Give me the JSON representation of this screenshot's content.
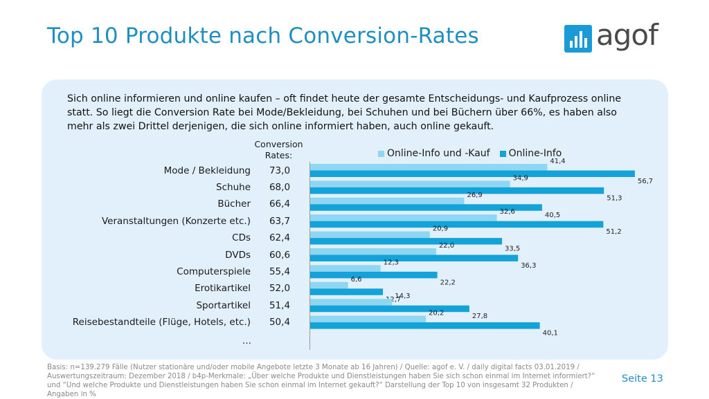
{
  "title": "Top 10 Produkte nach Conversion-Rates",
  "logo": {
    "text": "agof"
  },
  "intro": "Sich online informieren und online kaufen – oft findet heute der gesamte Entscheidungs- und Kaufprozess online statt. So liegt die Conversion Rate bei Mode/Bekleidung, bei Schuhen und bei Büchern über 66%, es haben also mehr als zwei Drittel derjenigen, die sich online informiert haben, auch online gekauft.",
  "conversion_header": {
    "line1": "Conversion",
    "line2": "Rates:"
  },
  "ellipsis": "…",
  "footer": "Basis: n=139.279 Fälle (Nutzer stationäre und/oder mobile Angebote letzte 3 Monate ab 16 Jahren) / Quelle: agof e. V. / daily digital facts 03.01.2019 / Auswertungszeitraum: Dezember 2018 / b4p-Merkmale: „Über welche Produkte und Dienstleistungen haben Sie sich schon einmal im Internet informiert?“ und “Und welche Produkte und Dienstleistungen haben Sie schon einmal im Internet gekauft?“ Darstellung der Top 10 von insgesamt 32 Produkten / Angaben in %",
  "page_label": "Seite 13",
  "colors": {
    "light": "#8fd6f2",
    "dark": "#13a3d8",
    "title": "#1f8fc1"
  },
  "chart_data": {
    "type": "bar",
    "orientation": "horizontal",
    "categories": [
      "Mode / Bekleidung",
      "Schuhe",
      "Bücher",
      "Veranstaltungen (Konzerte etc.)",
      "CDs",
      "DVDs",
      "Computerspiele",
      "Erotikartikel",
      "Sportartikel",
      "Reisebestandteile (Flüge, Hotels, etc.)"
    ],
    "conversion_rates": [
      "73,0",
      "68,0",
      "66,4",
      "63,7",
      "62,4",
      "60,6",
      "55,4",
      "52,0",
      "51,4",
      "50,4"
    ],
    "series": [
      {
        "name": "Online-Info und -Kauf",
        "color": "#8fd6f2",
        "values": [
          41.4,
          34.9,
          26.9,
          32.6,
          20.9,
          22.0,
          12.3,
          6.6,
          14.3,
          20.2
        ],
        "labels": [
          "41,4",
          "34,9",
          "26,9",
          "32,6",
          "20,9",
          "22,0",
          "12,3",
          "6,6",
          "14,3",
          "20,2"
        ]
      },
      {
        "name": "Online-Info",
        "color": "#13a3d8",
        "values": [
          56.7,
          51.3,
          40.5,
          51.2,
          33.5,
          36.3,
          22.2,
          12.7,
          27.8,
          40.1
        ],
        "labels": [
          "56,7",
          "51,3",
          "40,5",
          "51,2",
          "33,5",
          "36,3",
          "22,2",
          "12,7",
          "27,8",
          "40,1"
        ]
      }
    ],
    "legend_position": "top",
    "xlim": [
      0,
      60
    ]
  }
}
